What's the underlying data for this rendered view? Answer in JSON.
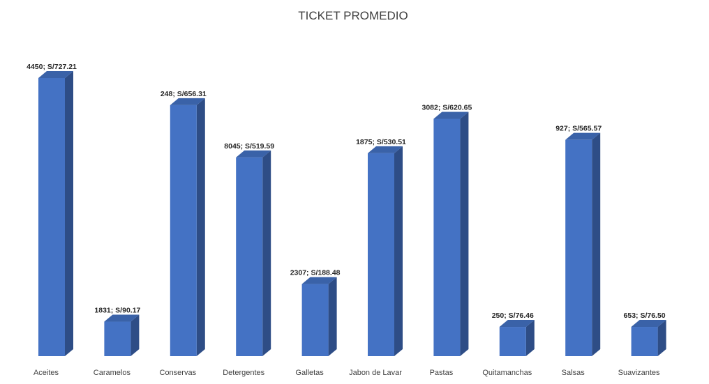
{
  "chart_data": {
    "type": "bar",
    "title": "TICKET PROMEDIO",
    "categories": [
      "Aceites",
      "Caramelos",
      "Conservas",
      "Detergentes",
      "Galletas",
      "Jabon de Lavar",
      "Pastas",
      "Quitamanchas",
      "Salsas",
      "Suavizantes"
    ],
    "values": [
      727.21,
      90.17,
      656.31,
      519.59,
      188.48,
      530.51,
      620.65,
      76.46,
      565.57,
      76.5
    ],
    "data_labels": [
      "4450; S/727.21",
      "1831; S/90.17",
      "248; S/656.31",
      "8045; S/519.59",
      "2307; S/188.48",
      "1875; S/530.51",
      "3082; S/620.65",
      "250; S/76.46",
      "927; S/565.57",
      "653; S/76.50"
    ],
    "xlabel": "",
    "ylabel": "",
    "ylim": [
      0,
      730
    ],
    "grid": false,
    "legend": "none",
    "colors": {
      "front": "#4472c4",
      "side": "#2e4d86",
      "top": "#3a62a8"
    }
  }
}
